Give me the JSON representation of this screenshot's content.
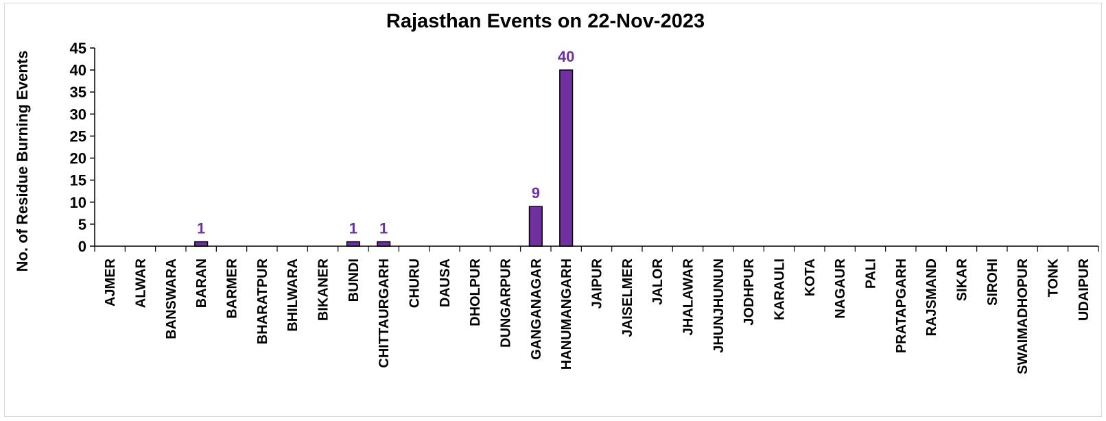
{
  "chart_data": {
    "type": "bar",
    "title": "Rajasthan Events on 22-Nov-2023",
    "xlabel": "",
    "ylabel": "No. of Residue Burning Events",
    "ylim": [
      0,
      45
    ],
    "yticks": [
      0,
      5,
      10,
      15,
      20,
      25,
      30,
      35,
      40,
      45
    ],
    "grid": false,
    "legend": "none",
    "bar_color": "#7030A0",
    "bar_outline": "#000000",
    "label_color": "#7030A0",
    "categories": [
      "AJMER",
      "ALWAR",
      "BANSWARA",
      "BARAN",
      "BARMER",
      "BHARATPUR",
      "BHILWARA",
      "BIKANER",
      "BUNDI",
      "CHITTAURGARH",
      "CHURU",
      "DAUSA",
      "DHOLPUR",
      "DUNGARPUR",
      "GANGANAGAR",
      "HANUMANGARH",
      "JAIPUR",
      "JAISELMER",
      "JALOR",
      "JHALAWAR",
      "JHUNJHUNUN",
      "JODHPUR",
      "KARAULI",
      "KOTA",
      "NAGAUR",
      "PALI",
      "PRATAPGARH",
      "RAJSMAND",
      "SIKAR",
      "SIROHI",
      "SWAIMADHOPUR",
      "TONK",
      "UDAIPUR"
    ],
    "values": [
      0,
      0,
      0,
      1,
      0,
      0,
      0,
      0,
      1,
      1,
      0,
      0,
      0,
      0,
      9,
      40,
      0,
      0,
      0,
      0,
      0,
      0,
      0,
      0,
      0,
      0,
      0,
      0,
      0,
      0,
      0,
      0,
      0
    ]
  }
}
